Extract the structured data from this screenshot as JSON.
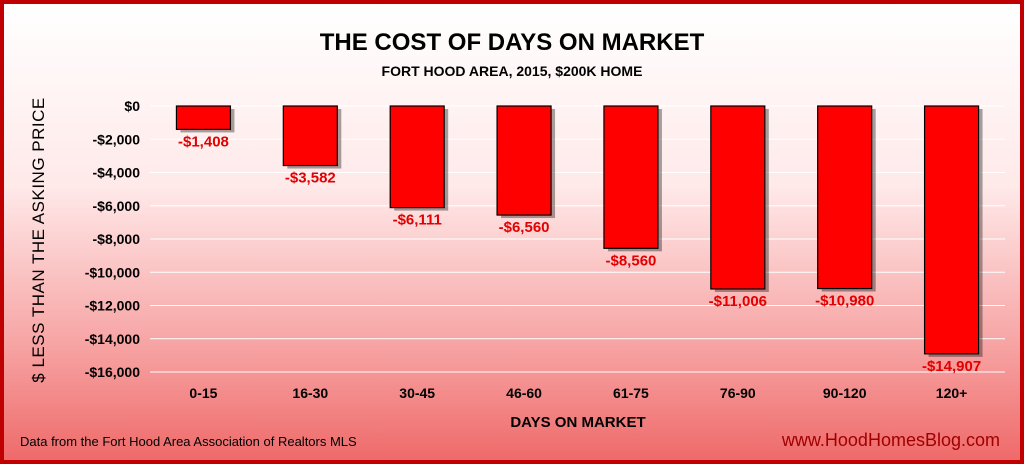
{
  "chart_data": {
    "type": "bar",
    "title": "THE COST OF DAYS ON MARKET",
    "subtitle": "FORT HOOD AREA, 2015, $200K HOME",
    "xlabel": "DAYS ON MARKET",
    "ylabel": "$ LESS THAN THE ASKING PRICE",
    "categories": [
      "0-15",
      "16-30",
      "30-45",
      "46-60",
      "61-75",
      "76-90",
      "90-120",
      "120+"
    ],
    "values": [
      -1408,
      -3582,
      -6111,
      -6560,
      -8560,
      -11006,
      -10980,
      -14907
    ],
    "data_labels": [
      "-$1,408",
      "-$3,582",
      "-$6,111",
      "-$6,560",
      "-$8,560",
      "-$11,006",
      "-$10,980",
      "-$14,907"
    ],
    "ylim": [
      -16000,
      0
    ],
    "yticks": [
      0,
      -2000,
      -4000,
      -6000,
      -8000,
      -10000,
      -12000,
      -14000,
      -16000
    ],
    "ytick_labels": [
      "$0",
      "-$2,000",
      "-$4,000",
      "-$6,000",
      "-$8,000",
      "-$10,000",
      "-$12,000",
      "-$14,000",
      "-$16,000"
    ],
    "bar_color": "#ff0000",
    "label_color": "#e30000",
    "grid": true,
    "legend": "none"
  },
  "footer": {
    "source_note": "Data from the Fort Hood Area Association of Realtors MLS",
    "website": "www.HoodHomesBlog.com"
  }
}
